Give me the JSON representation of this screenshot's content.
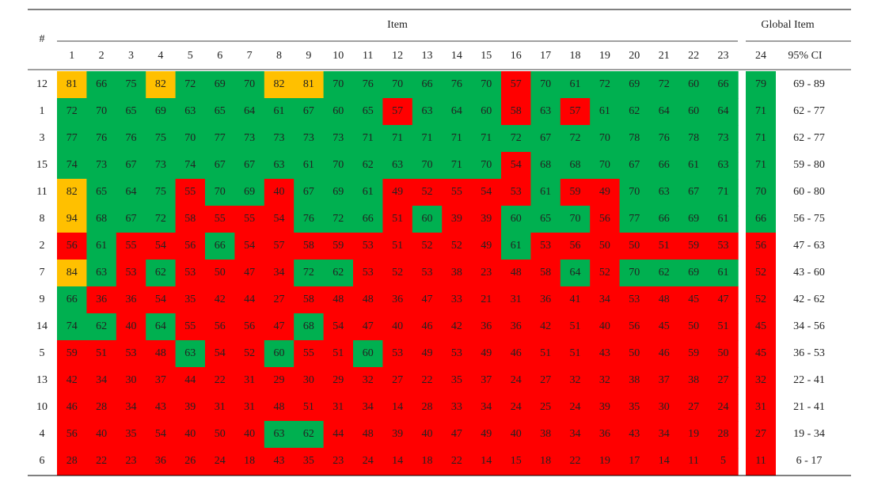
{
  "header": {
    "row_label": "#",
    "group": "Item",
    "global_group": "Global Item",
    "items": [
      1,
      2,
      3,
      4,
      5,
      6,
      7,
      8,
      9,
      10,
      11,
      12,
      13,
      14,
      15,
      16,
      17,
      18,
      19,
      20,
      21,
      22,
      23
    ],
    "global_item": 24,
    "ci": "95% CI"
  },
  "color_rules": [
    {
      "min": 80,
      "color": "#ffc000"
    },
    {
      "min": 60,
      "color": "#00b050"
    },
    {
      "min": 0,
      "color": "#ff0000"
    }
  ],
  "rows": [
    {
      "label": 12,
      "values": [
        81,
        66,
        75,
        82,
        72,
        69,
        70,
        82,
        81,
        70,
        76,
        70,
        66,
        76,
        70,
        57,
        70,
        61,
        72,
        69,
        72,
        60,
        66
      ],
      "global": 79,
      "ci": "69 - 89"
    },
    {
      "label": 1,
      "values": [
        72,
        70,
        65,
        69,
        63,
        65,
        64,
        61,
        67,
        60,
        65,
        57,
        63,
        64,
        60,
        58,
        63,
        57,
        61,
        62,
        64,
        60,
        64
      ],
      "global": 71,
      "ci": "62 - 77"
    },
    {
      "label": 3,
      "values": [
        77,
        76,
        76,
        75,
        70,
        77,
        73,
        73,
        73,
        73,
        71,
        71,
        71,
        71,
        71,
        72,
        67,
        72,
        70,
        78,
        76,
        78,
        73
      ],
      "global": 71,
      "ci": "62 - 77"
    },
    {
      "label": 15,
      "values": [
        74,
        73,
        67,
        73,
        74,
        67,
        67,
        63,
        61,
        70,
        62,
        63,
        70,
        71,
        70,
        54,
        68,
        68,
        70,
        67,
        66,
        61,
        63
      ],
      "global": 71,
      "ci": "59 - 80"
    },
    {
      "label": 11,
      "values": [
        82,
        65,
        64,
        75,
        55,
        70,
        69,
        40,
        67,
        69,
        61,
        49,
        52,
        55,
        54,
        53,
        61,
        59,
        49,
        70,
        63,
        67,
        71
      ],
      "global": 70,
      "ci": "60 - 80"
    },
    {
      "label": 8,
      "values": [
        94,
        68,
        67,
        72,
        58,
        55,
        55,
        54,
        76,
        72,
        66,
        51,
        60,
        39,
        39,
        60,
        65,
        70,
        56,
        77,
        66,
        69,
        61
      ],
      "global": 66,
      "ci": "56 - 75"
    },
    {
      "label": 2,
      "values": [
        56,
        61,
        55,
        54,
        56,
        66,
        54,
        57,
        58,
        59,
        53,
        51,
        52,
        52,
        49,
        61,
        53,
        56,
        50,
        50,
        51,
        59,
        53
      ],
      "global": 56,
      "ci": "47 - 63"
    },
    {
      "label": 7,
      "values": [
        84,
        63,
        53,
        62,
        53,
        50,
        47,
        34,
        72,
        62,
        53,
        52,
        53,
        38,
        23,
        48,
        58,
        64,
        52,
        70,
        62,
        69,
        61
      ],
      "global": 52,
      "ci": "43 - 60"
    },
    {
      "label": 9,
      "values": [
        66,
        36,
        36,
        54,
        35,
        42,
        44,
        27,
        58,
        48,
        48,
        36,
        47,
        33,
        21,
        31,
        36,
        41,
        34,
        53,
        48,
        45,
        47
      ],
      "global": 52,
      "ci": "42 - 62"
    },
    {
      "label": 14,
      "values": [
        74,
        62,
        40,
        64,
        55,
        56,
        56,
        47,
        68,
        54,
        47,
        40,
        46,
        42,
        36,
        36,
        42,
        51,
        40,
        56,
        45,
        50,
        51
      ],
      "global": 45,
      "ci": "34 - 56"
    },
    {
      "label": 5,
      "values": [
        59,
        51,
        53,
        48,
        63,
        54,
        52,
        60,
        55,
        51,
        60,
        53,
        49,
        53,
        49,
        46,
        51,
        51,
        43,
        50,
        46,
        59,
        50
      ],
      "global": 45,
      "ci": "36 - 53"
    },
    {
      "label": 13,
      "values": [
        42,
        34,
        30,
        37,
        44,
        22,
        31,
        29,
        30,
        29,
        32,
        27,
        22,
        35,
        37,
        24,
        27,
        32,
        32,
        38,
        37,
        38,
        27
      ],
      "global": 32,
      "ci": "22 - 41"
    },
    {
      "label": 10,
      "values": [
        46,
        28,
        34,
        43,
        39,
        31,
        31,
        48,
        51,
        31,
        34,
        14,
        28,
        33,
        34,
        24,
        25,
        24,
        39,
        35,
        30,
        27,
        24
      ],
      "global": 31,
      "ci": "21 - 41"
    },
    {
      "label": 4,
      "values": [
        56,
        40,
        35,
        54,
        40,
        50,
        40,
        63,
        62,
        44,
        48,
        39,
        40,
        47,
        49,
        40,
        38,
        34,
        36,
        43,
        34,
        19,
        28
      ],
      "global": 27,
      "ci": "19 - 34"
    },
    {
      "label": 6,
      "values": [
        28,
        22,
        23,
        36,
        26,
        24,
        18,
        43,
        35,
        23,
        24,
        14,
        18,
        22,
        14,
        15,
        18,
        22,
        19,
        17,
        14,
        11,
        5
      ],
      "global": 11,
      "ci": "6 - 17"
    }
  ]
}
